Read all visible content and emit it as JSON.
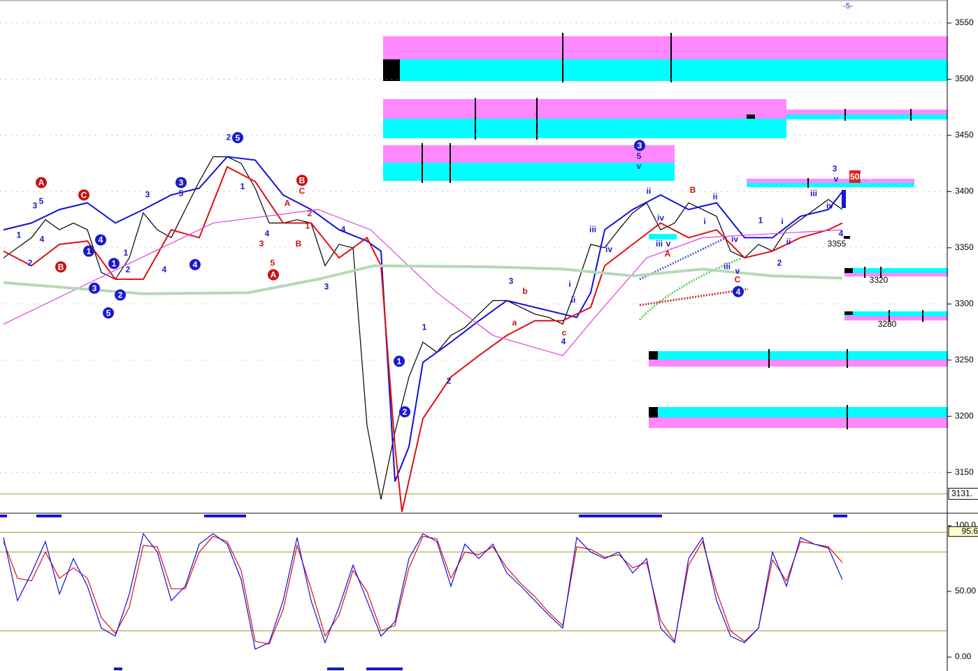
{
  "chart_data": [
    {
      "type": "line",
      "x": [
        0,
        1,
        2,
        3,
        4,
        5,
        6,
        7,
        8,
        9,
        10,
        11,
        12,
        13,
        14,
        15,
        16,
        17,
        18,
        19,
        20,
        21,
        22,
        23,
        24,
        25,
        26,
        27,
        28,
        29,
        30,
        31,
        32,
        33,
        34,
        35,
        36,
        37,
        38,
        39,
        40,
        41,
        42,
        43,
        44,
        45,
        46,
        47,
        48,
        49,
        50,
        51,
        52,
        53,
        54,
        55,
        56,
        57,
        58,
        59,
        60
      ],
      "xlim": [
        -0.25,
        67.5
      ],
      "ylim": [
        3115,
        3570.5
      ],
      "yticks": [
        3150,
        3200,
        3250,
        3300,
        3350,
        3400,
        3450,
        3500,
        3550
      ],
      "grid": true,
      "series": [
        {
          "color": "#000000",
          "values": [
            3341,
            3350,
            3359,
            3375,
            3366,
            3372,
            3366,
            3328,
            3322,
            3341,
            3381,
            3366,
            3359,
            3384,
            3409,
            3431,
            3431,
            3425,
            3403,
            3372,
            3372,
            3375,
            3372,
            3334,
            3353,
            3350,
            3192,
            3126,
            3186,
            3235,
            3266,
            3257,
            3272,
            3279,
            3291,
            3303,
            3303,
            3297,
            3291,
            3288,
            3282,
            3316,
            3353,
            3350,
            3366,
            3381,
            3390,
            3366,
            3372,
            3390,
            3384,
            3378,
            3347,
            3341,
            3353,
            3347,
            3366,
            3375,
            3384,
            3393,
            3384
          ]
        },
        {
          "color": "#1010dd",
          "x": [
            0,
            2,
            4,
            6,
            8,
            10,
            12,
            14,
            16,
            18,
            20,
            22,
            24,
            26,
            27,
            28,
            29,
            30,
            32,
            34,
            36,
            38,
            40,
            41,
            42,
            43,
            45,
            47,
            49,
            51,
            53,
            55,
            57,
            59,
            60
          ],
          "values": [
            3366,
            3372,
            3384,
            3390,
            3372,
            3384,
            3397,
            3403,
            3431,
            3428,
            3397,
            3384,
            3366,
            3356,
            3347,
            3142,
            3173,
            3248,
            3266,
            3285,
            3303,
            3297,
            3291,
            3288,
            3310,
            3366,
            3384,
            3397,
            3384,
            3390,
            3359,
            3359,
            3378,
            3384,
            3400
          ]
        },
        {
          "color": "#dd1010",
          "x": [
            0,
            2,
            4,
            6,
            8,
            10,
            12,
            14,
            16,
            18,
            20,
            22,
            24,
            26,
            27,
            28,
            28.5,
            30,
            32,
            34,
            36,
            38,
            40,
            42,
            43,
            45,
            47,
            49,
            51,
            53,
            55,
            57,
            59,
            60
          ],
          "values": [
            3347,
            3334,
            3353,
            3356,
            3322,
            3322,
            3366,
            3359,
            3422,
            3409,
            3372,
            3372,
            3341,
            3359,
            3334,
            3173,
            3115,
            3198,
            3235,
            3254,
            3272,
            3285,
            3285,
            3297,
            3334,
            3353,
            3372,
            3359,
            3366,
            3341,
            3347,
            3359,
            3366,
            3372
          ]
        },
        {
          "color": "#dd44dd",
          "x": [
            0,
            15,
            22.5,
            26.25,
            31,
            35,
            40,
            42.5,
            46,
            50,
            60
          ],
          "values": [
            3282,
            3372,
            3384,
            3366,
            3310,
            3272,
            3254,
            3291,
            3341,
            3359,
            3366
          ]
        },
        {
          "color": "#b8d8b8",
          "x": [
            0,
            10,
            17.5,
            22.5,
            26.5,
            35,
            40,
            45,
            50,
            55,
            60
          ],
          "values": [
            3319,
            3309,
            3310,
            3322,
            3334,
            3333,
            3331,
            3325,
            3331,
            3325,
            3323
          ]
        }
      ],
      "hline": {
        "value": 3131,
        "label": "3131."
      },
      "marker_label": "-5-",
      "pti_label": "50PTI",
      "zone_labels": [
        "3355",
        "3320",
        "3280"
      ],
      "annotations": [
        {
          "text": "A",
          "x": 2.7,
          "y": 3408,
          "color": "red",
          "circle": true
        },
        {
          "text": "3",
          "x": 2.25,
          "y": 3387,
          "color": "blue",
          "circle": false
        },
        {
          "text": "5",
          "x": 2.7,
          "y": 3391,
          "color": "blue",
          "circle": false
        },
        {
          "text": "1",
          "x": 1.1,
          "y": 3361,
          "color": "blue",
          "circle": false
        },
        {
          "text": "2",
          "x": 1.9,
          "y": 3336,
          "color": "blue",
          "circle": false
        },
        {
          "text": "4",
          "x": 2.75,
          "y": 3357,
          "color": "blue",
          "circle": false
        },
        {
          "text": "B",
          "x": 4.1,
          "y": 3333,
          "color": "red",
          "circle": true
        },
        {
          "text": "C",
          "x": 5.75,
          "y": 3397,
          "color": "red",
          "circle": true
        },
        {
          "text": "1",
          "x": 6.1,
          "y": 3347,
          "color": "blue",
          "circle": true
        },
        {
          "text": "4",
          "x": 6.95,
          "y": 3357,
          "color": "blue",
          "circle": true
        },
        {
          "text": "3",
          "x": 6.5,
          "y": 3314,
          "color": "blue",
          "circle": true
        },
        {
          "text": "5",
          "x": 7.5,
          "y": 3292,
          "color": "blue",
          "circle": true
        },
        {
          "text": "1",
          "x": 7.9,
          "y": 3336,
          "color": "blue",
          "circle": true
        },
        {
          "text": "2",
          "x": 8.35,
          "y": 3308,
          "color": "blue",
          "circle": true
        },
        {
          "text": "2",
          "x": 8.9,
          "y": 3330,
          "color": "blue",
          "circle": false
        },
        {
          "text": "1",
          "x": 8.75,
          "y": 3345,
          "color": "blue",
          "circle": false
        },
        {
          "text": "3",
          "x": 10.3,
          "y": 3397,
          "color": "blue",
          "circle": false
        },
        {
          "text": "3",
          "x": 12.7,
          "y": 3408,
          "color": "blue",
          "circle": true
        },
        {
          "text": "5",
          "x": 12.7,
          "y": 3398,
          "color": "blue",
          "circle": false
        },
        {
          "text": "4",
          "x": 13.7,
          "y": 3335,
          "color": "blue",
          "circle": true
        },
        {
          "text": "4",
          "x": 11.5,
          "y": 3330,
          "color": "blue",
          "circle": false
        },
        {
          "text": "5",
          "x": 16.75,
          "y": 3448,
          "color": "blue",
          "circle": true
        },
        {
          "text": "2",
          "x": 16.1,
          "y": 3448,
          "color": "blue",
          "circle": false
        },
        {
          "text": "1",
          "x": 17.1,
          "y": 3404,
          "color": "blue",
          "circle": false
        },
        {
          "text": "B",
          "x": 21.35,
          "y": 3410,
          "color": "red",
          "circle": true
        },
        {
          "text": "C",
          "x": 21.35,
          "y": 3400,
          "color": "red",
          "circle": false
        },
        {
          "text": "A",
          "x": 20.3,
          "y": 3389,
          "color": "red",
          "circle": false
        },
        {
          "text": "1",
          "x": 21.75,
          "y": 3369,
          "color": "red",
          "circle": false
        },
        {
          "text": "2",
          "x": 21.9,
          "y": 3380,
          "color": "red",
          "circle": false
        },
        {
          "text": "3",
          "x": 18.45,
          "y": 3353,
          "color": "red",
          "circle": false
        },
        {
          "text": "4",
          "x": 18.85,
          "y": 3362,
          "color": "blue",
          "circle": false
        },
        {
          "text": "5",
          "x": 19.25,
          "y": 3336,
          "color": "red",
          "circle": false
        },
        {
          "text": "A",
          "x": 19.3,
          "y": 3326,
          "color": "red",
          "circle": true
        },
        {
          "text": "B",
          "x": 21.1,
          "y": 3353,
          "color": "red",
          "circle": false
        },
        {
          "text": "3",
          "x": 23.1,
          "y": 3315,
          "color": "blue",
          "circle": false
        },
        {
          "text": "4",
          "x": 24.3,
          "y": 3366,
          "color": "blue",
          "circle": false
        },
        {
          "text": "1",
          "x": 28.3,
          "y": 3249,
          "color": "blue",
          "circle": true
        },
        {
          "text": "2",
          "x": 28.7,
          "y": 3204,
          "color": "blue",
          "circle": true
        },
        {
          "text": "1",
          "x": 30.1,
          "y": 3279,
          "color": "blue",
          "circle": false
        },
        {
          "text": "2",
          "x": 31.85,
          "y": 3231,
          "color": "blue",
          "circle": false
        },
        {
          "text": "3",
          "x": 36.3,
          "y": 3320,
          "color": "blue",
          "circle": false
        },
        {
          "text": "b",
          "x": 37.3,
          "y": 3311,
          "color": "red",
          "circle": false
        },
        {
          "text": "a",
          "x": 36.55,
          "y": 3283,
          "color": "red",
          "circle": false
        },
        {
          "text": "c",
          "x": 40.1,
          "y": 3274,
          "color": "red",
          "circle": false
        },
        {
          "text": "4",
          "x": 40.05,
          "y": 3266,
          "color": "blue",
          "circle": false
        },
        {
          "text": "i",
          "x": 40.5,
          "y": 3317,
          "color": "blue",
          "circle": false
        },
        {
          "text": "ii",
          "x": 40.75,
          "y": 3303,
          "color": "blue",
          "circle": false
        },
        {
          "text": "iii",
          "x": 42.15,
          "y": 3366,
          "color": "blue",
          "circle": false
        },
        {
          "text": "iv",
          "x": 43.3,
          "y": 3348,
          "color": "blue",
          "circle": false
        },
        {
          "text": "3",
          "x": 45.5,
          "y": 3441,
          "color": "blue",
          "circle": true
        },
        {
          "text": "5",
          "x": 45.45,
          "y": 3431,
          "color": "blue",
          "circle": false
        },
        {
          "text": "v",
          "x": 45.45,
          "y": 3422,
          "color": "blue",
          "circle": false
        },
        {
          "text": "ii",
          "x": 46.15,
          "y": 3400,
          "color": "blue",
          "circle": false
        },
        {
          "text": "iv",
          "x": 47,
          "y": 3376,
          "color": "blue",
          "circle": false
        },
        {
          "text": "iii",
          "x": 46.9,
          "y": 3353,
          "color": "blue",
          "circle": false
        },
        {
          "text": "v",
          "x": 47.55,
          "y": 3353,
          "color": "blue",
          "circle": false
        },
        {
          "text": "A",
          "x": 47.5,
          "y": 3344,
          "color": "red",
          "circle": false
        },
        {
          "text": "B",
          "x": 49.3,
          "y": 3401,
          "color": "red",
          "circle": false
        },
        {
          "text": "ii",
          "x": 50.9,
          "y": 3395,
          "color": "blue",
          "circle": false
        },
        {
          "text": "i",
          "x": 50.15,
          "y": 3373,
          "color": "blue",
          "circle": false
        },
        {
          "text": "iv",
          "x": 52.3,
          "y": 3357,
          "color": "blue",
          "circle": false
        },
        {
          "text": "iii",
          "x": 51.75,
          "y": 3333,
          "color": "blue",
          "circle": false
        },
        {
          "text": "v",
          "x": 52.5,
          "y": 3329,
          "color": "blue",
          "circle": false
        },
        {
          "text": "C",
          "x": 52.5,
          "y": 3321,
          "color": "red",
          "circle": false
        },
        {
          "text": "4",
          "x": 52.55,
          "y": 3311,
          "color": "blue",
          "circle": true
        },
        {
          "text": "1",
          "x": 54.15,
          "y": 3374,
          "color": "blue",
          "circle": false
        },
        {
          "text": "2",
          "x": 55.5,
          "y": 3336,
          "color": "blue",
          "circle": false
        },
        {
          "text": "i",
          "x": 55.7,
          "y": 3373,
          "color": "blue",
          "circle": false
        },
        {
          "text": "ii",
          "x": 56.15,
          "y": 3355,
          "color": "blue",
          "circle": false
        },
        {
          "text": "iii",
          "x": 57.95,
          "y": 3398,
          "color": "blue",
          "circle": false
        },
        {
          "text": "3",
          "x": 59.45,
          "y": 3420,
          "color": "blue",
          "circle": false
        },
        {
          "text": "v",
          "x": 59.55,
          "y": 3411,
          "color": "blue",
          "circle": false
        },
        {
          "text": "iv",
          "x": 59.1,
          "y": 3387,
          "color": "blue",
          "circle": false
        },
        {
          "text": "4",
          "x": 59.9,
          "y": 3362,
          "color": "blue",
          "circle": false
        }
      ]
    },
    {
      "type": "line",
      "x": [
        0,
        1,
        2,
        3,
        4,
        5,
        6,
        7,
        8,
        9,
        10,
        11,
        12,
        13,
        14,
        15,
        16,
        17,
        18,
        19,
        20,
        21,
        22,
        23,
        24,
        25,
        26,
        27,
        28,
        29,
        30,
        31,
        32,
        33,
        34,
        35,
        36,
        37,
        38,
        39,
        40,
        41,
        42,
        43,
        44,
        45,
        46,
        47,
        48,
        49,
        50,
        51,
        52,
        53,
        54,
        55,
        56,
        57,
        58,
        59,
        60
      ],
      "xlim": [
        -0.25,
        67.5
      ],
      "ylim": [
        -10.6,
        108.5
      ],
      "yticks": [
        {
          "value": 100,
          "label": "100.0"
        },
        {
          "value": 50,
          "label": "50.00"
        },
        {
          "value": 0,
          "label": "0.00"
        }
      ],
      "hlines": [
        95,
        80,
        20
      ],
      "last_value": 95.6,
      "series": [
        {
          "color": "#dd1010",
          "values": [
            88,
            60,
            58,
            80,
            60,
            68,
            60,
            30,
            18,
            38,
            85,
            84,
            52,
            52,
            80,
            92,
            88,
            66,
            12,
            10,
            36,
            85,
            52,
            16,
            32,
            66,
            50,
            20,
            24,
            68,
            92,
            90,
            60,
            80,
            78,
            84,
            68,
            56,
            46,
            34,
            24,
            84,
            82,
            76,
            78,
            68,
            72,
            28,
            12,
            70,
            88,
            50,
            20,
            12,
            22,
            74,
            58,
            88,
            86,
            84,
            72
          ]
        },
        {
          "color": "#1010dd",
          "values": [
            91,
            43,
            64,
            88,
            48,
            75,
            54,
            22,
            16,
            48,
            94,
            80,
            43,
            54,
            86,
            94,
            86,
            59,
            6,
            11,
            43,
            91,
            43,
            11,
            38,
            70,
            43,
            16,
            27,
            75,
            94,
            88,
            54,
            86,
            75,
            86,
            64,
            54,
            43,
            32,
            22,
            91,
            80,
            75,
            80,
            64,
            75,
            22,
            11,
            75,
            91,
            43,
            16,
            11,
            22,
            80,
            54,
            91,
            86,
            83,
            59
          ]
        }
      ]
    }
  ]
}
